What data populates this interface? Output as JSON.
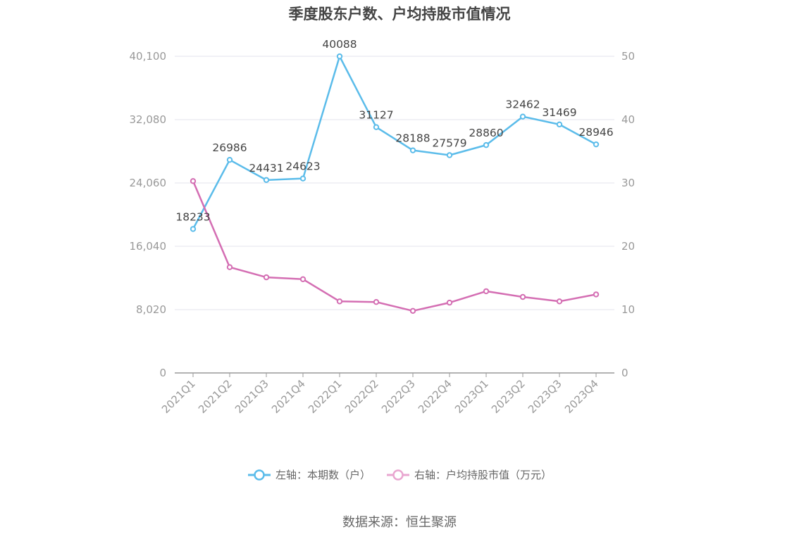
{
  "title": "季度股东户数、户均持股市值情况",
  "source": "数据来源：恒生聚源",
  "colors": {
    "left": "#5bbcea",
    "right": "#d46eb3",
    "grid": "#e3e3ee",
    "axis": "#999999"
  },
  "chart_data": {
    "type": "line",
    "categories": [
      "2021Q1",
      "2021Q2",
      "2021Q3",
      "2021Q4",
      "2022Q1",
      "2022Q2",
      "2022Q3",
      "2022Q4",
      "2023Q1",
      "2023Q2",
      "2023Q3",
      "2023Q4"
    ],
    "series": [
      {
        "name": "左轴：本期数（户）",
        "axis": "left",
        "values": [
          18233,
          26986,
          24431,
          24623,
          40088,
          31127,
          28188,
          27579,
          28860,
          32462,
          31469,
          28946
        ],
        "labels_shown": true
      },
      {
        "name": "右轴：户均持股市值（万元）",
        "axis": "right",
        "values": [
          30.3,
          16.7,
          15.1,
          14.8,
          11.3,
          11.2,
          9.8,
          11.1,
          12.9,
          12.0,
          11.3,
          12.4
        ],
        "labels_shown": false
      }
    ],
    "left_axis": {
      "range": [
        0,
        40100
      ],
      "ticks": [
        "0",
        "8,020",
        "16,040",
        "24,060",
        "32,080",
        "40,100"
      ],
      "tick_values": [
        0,
        8020,
        16040,
        24060,
        32080,
        40100
      ]
    },
    "right_axis": {
      "range": [
        0,
        50
      ],
      "ticks": [
        "0",
        "10",
        "20",
        "30",
        "40",
        "50"
      ],
      "tick_values": [
        0,
        10,
        20,
        30,
        40,
        50
      ]
    },
    "grid": true,
    "legend_position": "bottom"
  }
}
